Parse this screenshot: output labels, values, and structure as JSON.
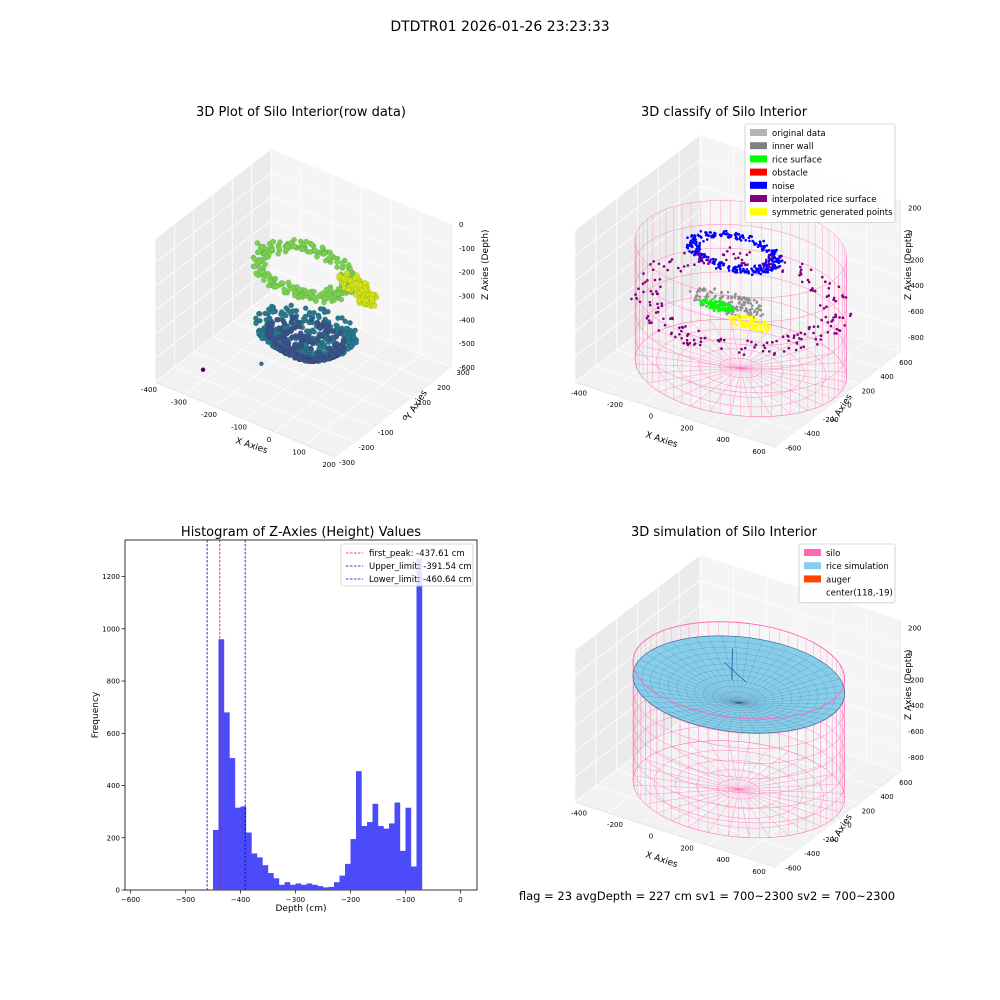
{
  "figure": {
    "suptitle": "DTDTR01 2026-01-26 23:23:33",
    "footer": "flag = 23   avgDepth = 227 cm  sv1 = 700~2300  sv2 = 700~2300"
  },
  "chart_data": [
    {
      "type": "scatter",
      "subtype": "3d",
      "title": "3D Plot of Silo Interior(row data)",
      "xlabel": "X Axies",
      "ylabel": "Y Axies",
      "zlabel": "Z Axies (Depth)",
      "xticks": [
        "-400",
        "-300",
        "-200",
        "-100",
        "0",
        "100",
        "200"
      ],
      "yticks": [
        "-300",
        "-200",
        "-100",
        "0",
        "100",
        "200",
        "300"
      ],
      "zticks": [
        "0",
        "-100",
        "-200",
        "-300",
        "-400",
        "-500",
        "-600"
      ],
      "xlim": [
        -400,
        200
      ],
      "ylim": [
        -300,
        300
      ],
      "zlim": [
        -600,
        0
      ],
      "colormap": "viridis",
      "point_groups": [
        {
          "shape": "ring",
          "cx": -120,
          "cy": 40,
          "z": -200,
          "rx": 160,
          "ry": 100,
          "count": 260,
          "color": "#7ad151"
        },
        {
          "shape": "arc",
          "cx": -20,
          "cy": 60,
          "z": -230,
          "rx": 120,
          "ry": 70,
          "count": 150,
          "color": "#d2e21b"
        },
        {
          "shape": "bowl",
          "cx": -90,
          "cy": 0,
          "z": -470,
          "rx": 150,
          "ry": 130,
          "count": 380,
          "color": "#2a788e"
        },
        {
          "shape": "bowl",
          "cx": -90,
          "cy": 0,
          "z": -500,
          "rx": 120,
          "ry": 100,
          "count": 200,
          "color": "#3b528b"
        }
      ],
      "outliers": [
        {
          "x": -330,
          "y": -160,
          "z": -600,
          "color": "#440154"
        },
        {
          "x": -200,
          "y": -60,
          "z": -570,
          "color": "#31688e"
        }
      ]
    },
    {
      "type": "scatter",
      "subtype": "3d",
      "title": "3D classify of Silo Interior",
      "xlabel": "X Axies",
      "ylabel": "Y Axies",
      "zlabel": "Z Axies (Depth)",
      "xticks": [
        "-400",
        "-200",
        "0",
        "200",
        "400",
        "600"
      ],
      "yticks": [
        "-600",
        "-400",
        "-200",
        "0",
        "200",
        "400",
        "600"
      ],
      "zticks": [
        "200",
        "0",
        "-200",
        "-400",
        "-600",
        "-800"
      ],
      "xlim": [
        -500,
        700
      ],
      "ylim": [
        -700,
        700
      ],
      "zlim": [
        -900,
        250
      ],
      "legend": {
        "position": "upper right",
        "items": [
          {
            "label": "original data",
            "color": "#b4b4b4"
          },
          {
            "label": "inner wall",
            "color": "#808080"
          },
          {
            "label": "rice surface",
            "color": "#00ff00"
          },
          {
            "label": "obstacle",
            "color": "#ff0000"
          },
          {
            "label": "noise",
            "color": "#0000ff"
          },
          {
            "label": "interpolated rice surface",
            "color": "#800080"
          },
          {
            "label": "symmetric generated points",
            "color": "#ffff00"
          }
        ]
      },
      "silo": {
        "cx": 120,
        "cy": 0,
        "radius": 560,
        "z_top": 0,
        "z_bottom": -900,
        "color": "#ff69b4"
      },
      "point_groups": [
        {
          "shape": "ring",
          "cx": 0,
          "cy": 150,
          "z": -150,
          "rx": 260,
          "ry": 170,
          "count": 330,
          "color": "#0000ff"
        },
        {
          "shape": "disc",
          "cx": 80,
          "cy": -80,
          "z": -380,
          "rx": 220,
          "ry": 130,
          "count": 160,
          "color": "#909090"
        },
        {
          "shape": "disc",
          "cx": 40,
          "cy": -120,
          "z": -400,
          "rx": 100,
          "ry": 60,
          "count": 90,
          "color": "#00ff00"
        },
        {
          "shape": "disc",
          "cx": 270,
          "cy": -170,
          "z": -410,
          "rx": 120,
          "ry": 70,
          "count": 110,
          "color": "#ffff00"
        },
        {
          "shape": "ring",
          "cx": 120,
          "cy": 0,
          "z": -400,
          "rx": 560,
          "ry": 560,
          "count": 220,
          "color": "#800080"
        }
      ]
    },
    {
      "type": "bar",
      "subtype": "histogram",
      "title": "Histogram of Z-Axies (Height) Values",
      "xlabel": "Depth (cm)",
      "ylabel": "Frequency",
      "xlim": [
        -610,
        30
      ],
      "ylim": [
        0,
        1340
      ],
      "xticks": [
        -600,
        -500,
        -400,
        -300,
        -200,
        -100,
        0
      ],
      "xtick_labels": [
        "−600",
        "−500",
        "−400",
        "−300",
        "−200",
        "−100",
        "0"
      ],
      "yticks": [
        0,
        200,
        400,
        600,
        800,
        1000,
        1200
      ],
      "yticks_labels": [
        "0",
        "200",
        "400",
        "600",
        "800",
        "1000",
        "1200"
      ],
      "bin_start": -450,
      "bin_width": 10,
      "values": [
        230,
        960,
        680,
        505,
        315,
        320,
        220,
        140,
        125,
        95,
        65,
        45,
        20,
        30,
        20,
        25,
        20,
        25,
        20,
        15,
        10,
        12,
        30,
        55,
        100,
        195,
        455,
        245,
        260,
        330,
        245,
        235,
        255,
        335,
        150,
        315,
        90,
        1270
      ],
      "bar_color": "#4b4bfa",
      "vlines": [
        {
          "label": "first_peak: -437.61 cm",
          "x": -437.61,
          "color": "#ff0000"
        },
        {
          "label": "Upper_limit: -391.54 cm",
          "x": -391.54,
          "color": "#0000aa"
        },
        {
          "label": "Lower_limit: -460.64 cm",
          "x": -460.64,
          "color": "#0000aa"
        }
      ],
      "legend_position": "upper right"
    },
    {
      "type": "scatter",
      "subtype": "3d-surface",
      "title": "3D simulation of Silo Interior",
      "xlabel": "X Axies",
      "ylabel": "Y Axies",
      "zlabel": "Z Axies (Depth)",
      "xticks": [
        "-400",
        "-200",
        "0",
        "200",
        "400",
        "600"
      ],
      "yticks": [
        "-600",
        "-400",
        "-200",
        "0",
        "200",
        "400",
        "600"
      ],
      "zticks": [
        "200",
        "0",
        "-200",
        "-400",
        "-600",
        "-800"
      ],
      "xlim": [
        -500,
        700
      ],
      "ylim": [
        -700,
        700
      ],
      "zlim": [
        -900,
        250
      ],
      "legend": {
        "position": "upper right",
        "items": [
          {
            "label": "silo",
            "color": "#ff69b4"
          },
          {
            "label": "rice simulation",
            "color": "#87ceeb"
          },
          {
            "label": "auger",
            "color": "#ff4500"
          },
          {
            "label": "center(118,-19)",
            "color": "#ffffff"
          }
        ]
      },
      "silo": {
        "cx": 118,
        "cy": -19,
        "radius": 560,
        "z_top": 0,
        "z_bottom": -900,
        "color": "#ff69b4"
      },
      "surface": {
        "avg_depth": -227,
        "color": "#87ceeb",
        "edge_color": "#1f3f5f"
      }
    }
  ]
}
